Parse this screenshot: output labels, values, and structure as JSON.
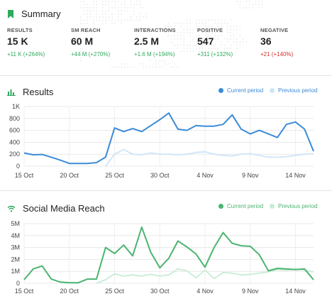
{
  "summary": {
    "title": "Summary",
    "metrics": [
      {
        "label": "RESULTS",
        "value": "15 K",
        "change": "+11 K (+264%)",
        "trend": "positive"
      },
      {
        "label": "SM REACH",
        "value": "60 M",
        "change": "+44 M (+270%)",
        "trend": "positive"
      },
      {
        "label": "INTERACTIONS",
        "value": "2.5 M",
        "change": "+1.6 M (+194%)",
        "trend": "positive"
      },
      {
        "label": "POSITIVE",
        "value": "547",
        "change": "+311 (+132%)",
        "trend": "positive"
      },
      {
        "label": "NEGATIVE",
        "value": "36",
        "change": "+21 (+140%)",
        "trend": "negative"
      }
    ]
  },
  "results_panel": {
    "title": "Results",
    "legend_current": "Current period",
    "legend_previous": "Previous period"
  },
  "reach_panel": {
    "title": "Social Media Reach",
    "legend_current": "Current period",
    "legend_previous": "Previous period"
  },
  "colors": {
    "accent_green": "#2eaa5c",
    "negative_red": "#d0312d",
    "results_current": "#3b8bd8",
    "results_previous": "#cde4f8",
    "reach_current": "#4bb470",
    "reach_previous": "#c7ecd5"
  },
  "icons": {
    "summary": "bookmark-icon",
    "results": "bar-chart-icon",
    "reach": "wifi-icon"
  },
  "chart_data": [
    {
      "type": "line",
      "title": "Results",
      "x_tick_labels": [
        "15 Oct",
        "20 Oct",
        "25 Oct",
        "30 Oct",
        "4 Nov",
        "9 Nov",
        "14 Nov"
      ],
      "y_tick_labels": [
        "0",
        "200",
        "400",
        "600",
        "800",
        "1K"
      ],
      "ylim": [
        0,
        1000
      ],
      "grid": true,
      "legend_position": "top-right",
      "series": [
        {
          "name": "Current period",
          "values": [
            220,
            190,
            195,
            150,
            100,
            45,
            45,
            45,
            60,
            150,
            640,
            580,
            630,
            580,
            680,
            780,
            890,
            620,
            600,
            680,
            670,
            670,
            700,
            860,
            620,
            540,
            600,
            540,
            480,
            700,
            740,
            620,
            250
          ]
        },
        {
          "name": "Previous period",
          "values": [
            0,
            0,
            0,
            0,
            0,
            0,
            0,
            0,
            0,
            0,
            200,
            280,
            200,
            190,
            220,
            200,
            200,
            190,
            200,
            230,
            240,
            200,
            180,
            170,
            200,
            210,
            180,
            150,
            150,
            160,
            180,
            200,
            210
          ]
        }
      ]
    },
    {
      "type": "line",
      "title": "Social Media Reach",
      "x_tick_labels": [
        "15 Oct",
        "20 Oct",
        "25 Oct",
        "30 Oct",
        "4 Nov",
        "9 Nov",
        "14 Nov"
      ],
      "y_tick_labels": [
        "0",
        "1M",
        "2M",
        "3M",
        "4M",
        "5M"
      ],
      "ylim": [
        0,
        5000000
      ],
      "grid": true,
      "legend_position": "top-right",
      "series": [
        {
          "name": "Current period",
          "values": [
            300000,
            1200000,
            1450000,
            350000,
            100000,
            50000,
            50000,
            350000,
            350000,
            3000000,
            2500000,
            3200000,
            2300000,
            4700000,
            2600000,
            1300000,
            2100000,
            3550000,
            3050000,
            2450000,
            1350000,
            3000000,
            4250000,
            3350000,
            3150000,
            3100000,
            2400000,
            1050000,
            1250000,
            1200000,
            1150000,
            1200000,
            300000
          ]
        },
        {
          "name": "Previous period",
          "values": [
            0,
            0,
            0,
            0,
            0,
            0,
            0,
            0,
            0,
            300000,
            800000,
            600000,
            700000,
            600000,
            750000,
            600000,
            700000,
            1200000,
            1050000,
            450000,
            1100000,
            400000,
            900000,
            850000,
            700000,
            750000,
            850000,
            950000,
            1150000,
            1100000,
            1200000,
            1100000,
            950000
          ]
        }
      ]
    }
  ]
}
